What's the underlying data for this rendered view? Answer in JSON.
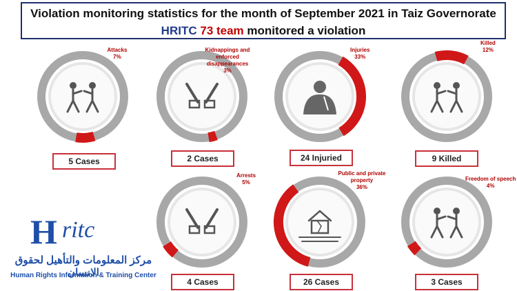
{
  "title": {
    "line1": "Violation monitoring statistics for the month of September 2021 in Taiz Governorate",
    "line2_org": "HRITC",
    "line2_count": "73 team",
    "line2_rest": "monitored a violation"
  },
  "chart_data": {
    "type": "donut",
    "title": "Violation monitoring statistics for the month of September 2021 in Taiz Governorate",
    "items": [
      {
        "label": "Attacks",
        "percent": 7,
        "pct_text": "7%",
        "cases": "5 Cases",
        "icon": "assault-icon"
      },
      {
        "label": "Kidnappings and enforced disappearances",
        "percent": 3,
        "pct_text": "3%",
        "cases": "2 Cases",
        "icon": "handcuffed-hands-icon"
      },
      {
        "label": "Injuries",
        "percent": 33,
        "pct_text": "33%",
        "cases": "24 Injuried",
        "icon": "injured-person-icon"
      },
      {
        "label": "Killed",
        "percent": 12,
        "pct_text": "12%",
        "cases": "9  Killed",
        "icon": "shooting-icon"
      },
      {
        "label": "Arrests",
        "percent": 5,
        "pct_text": "5%",
        "cases": "4 Cases",
        "icon": "handcuffs-icon"
      },
      {
        "label": "Public and private property",
        "percent": 36,
        "pct_text": "36%",
        "cases": "26 Cases",
        "icon": "damaged-house-icon"
      },
      {
        "label": "Freedom of speech",
        "percent": 4,
        "pct_text": "4%",
        "cases": "3 Cases",
        "icon": "speech-assault-icon"
      }
    ]
  },
  "logo": {
    "mark_h": "H",
    "mark_ritc": "ritc",
    "arabic": "مركز المعلومات والتأهيل لحقوق الانسان",
    "english": "Human Rights Information & Training Center"
  },
  "colors": {
    "accent": "#d01818",
    "ring": "#a8a8a8",
    "title_border": "#1f2f6b",
    "brand": "#1e4ea8"
  }
}
